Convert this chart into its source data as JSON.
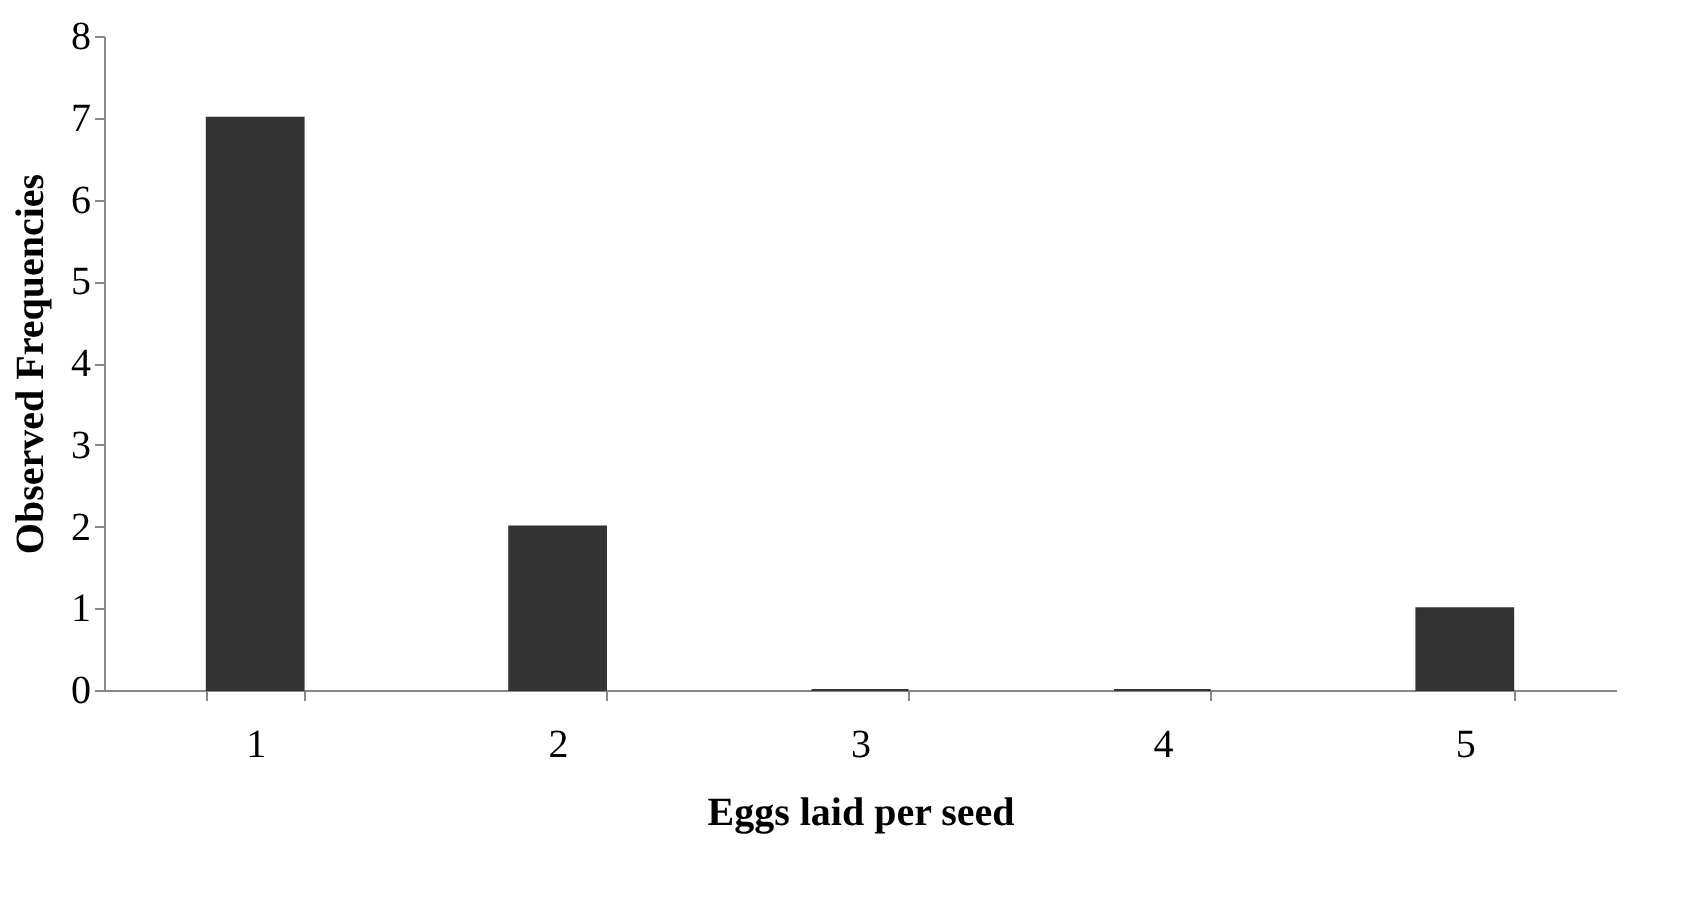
{
  "chart_data": {
    "type": "bar",
    "xlabel": "Eggs laid per seed",
    "ylabel": "Observed  Frequencies",
    "categories": [
      "1",
      "2",
      "3",
      "4",
      "5"
    ],
    "values": [
      7,
      2,
      0,
      0,
      1
    ],
    "color": "#333333",
    "ylim": [
      0,
      8
    ],
    "yticks": [
      0,
      1,
      2,
      3,
      4,
      5,
      6,
      7,
      8
    ],
    "grid": false
  }
}
